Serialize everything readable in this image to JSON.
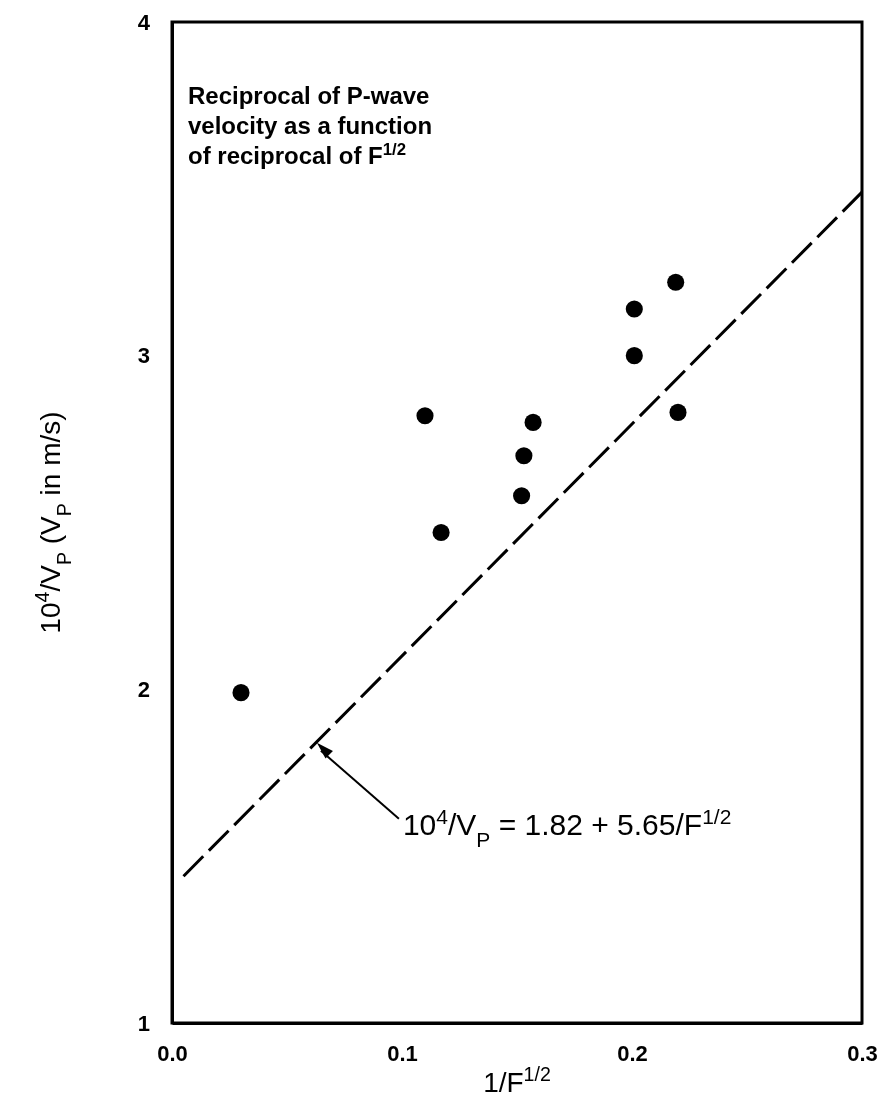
{
  "chart_data": {
    "type": "scatter",
    "title": "Reciprocal of P-wave velocity as a function of reciprocal of F$^{1/2}$",
    "xlabel": "1/F$^{1/2}$",
    "ylabel": "10$^{4}$/V$_{P}$ (V$_{P}$ in m/s)",
    "xlim": [
      0,
      0.3
    ],
    "ylim": [
      1,
      4
    ],
    "xticks": [
      {
        "value": 0,
        "label": "0.0"
      },
      0.1,
      0.2,
      0.3
    ],
    "yticks": [
      1,
      2,
      3,
      4
    ],
    "grid": false,
    "marker": "circle",
    "series": [
      {
        "color": "#000000",
        "x": [
          0.03,
          0.11,
          0.117,
          0.152,
          0.153,
          0.157,
          0.201,
          0.201,
          0.219,
          0.22
        ],
        "values": [
          1.99,
          2.82,
          2.47,
          2.58,
          2.7,
          2.8,
          3.14,
          3.0,
          3.22,
          2.83
        ]
      },
      {
        "type": "line",
        "color": "#000000",
        "line_style": "dashed",
        "marker": "none",
        "x": [
          0.005,
          0.3
        ],
        "values": [
          1.44,
          3.49
        ]
      }
    ],
    "annotations": [
      {
        "text": "10$^{4}$/V$_{P}$ = 1.82 + 5.65/F$^{1/2}$",
        "x": 0.063,
        "y": 1.84
      }
    ]
  }
}
